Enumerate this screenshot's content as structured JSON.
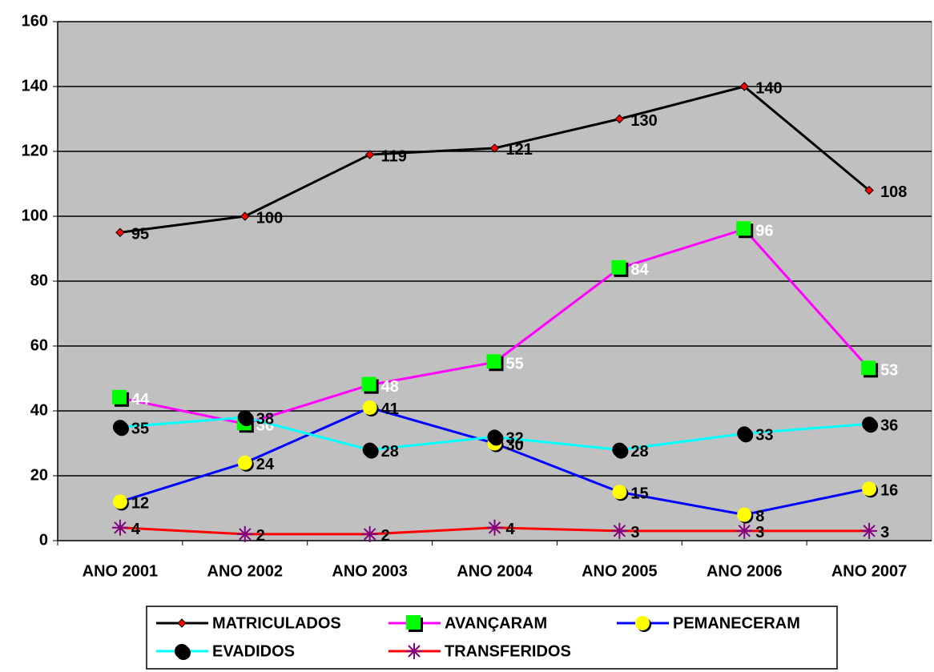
{
  "chart_data": {
    "type": "line",
    "categories": [
      "ANO 2001",
      "ANO 2002",
      "ANO 2003",
      "ANO 2004",
      "ANO 2005",
      "ANO 2006",
      "ANO 2007"
    ],
    "series": [
      {
        "name": "MATRICULADOS",
        "color": "#000000",
        "marker": "diamond",
        "marker_color": "#ff0000",
        "label_color": "#000000",
        "values": [
          95,
          100,
          119,
          121,
          130,
          140,
          108
        ]
      },
      {
        "name": "AVANÇARAM",
        "color": "#ff00ff",
        "marker": "square",
        "marker_color": "#00ff00",
        "label_color": "#ffffff",
        "values": [
          44,
          36,
          48,
          55,
          84,
          96,
          53
        ]
      },
      {
        "name": "PEMANECERAM",
        "color": "#0000ff",
        "marker": "circle",
        "marker_color": "#ffff00",
        "label_color": "#000000",
        "values": [
          12,
          24,
          41,
          30,
          15,
          8,
          16
        ]
      },
      {
        "name": "EVADIDOS",
        "color": "#00ffff",
        "marker": "circle",
        "marker_color": "#000000",
        "label_color": "#000000",
        "values": [
          35,
          38,
          28,
          32,
          28,
          33,
          36
        ]
      },
      {
        "name": "TRANSFERIDOS",
        "color": "#ff0000",
        "marker": "star",
        "marker_color": "#800080",
        "label_color": "#000000",
        "values": [
          4,
          2,
          2,
          4,
          3,
          3,
          3
        ]
      }
    ],
    "ylim": [
      0,
      160
    ],
    "yticks": [
      0,
      20,
      40,
      60,
      80,
      100,
      120,
      140,
      160
    ],
    "grid": true,
    "plot_background": "#c0c0c0",
    "legend": "bottom"
  }
}
